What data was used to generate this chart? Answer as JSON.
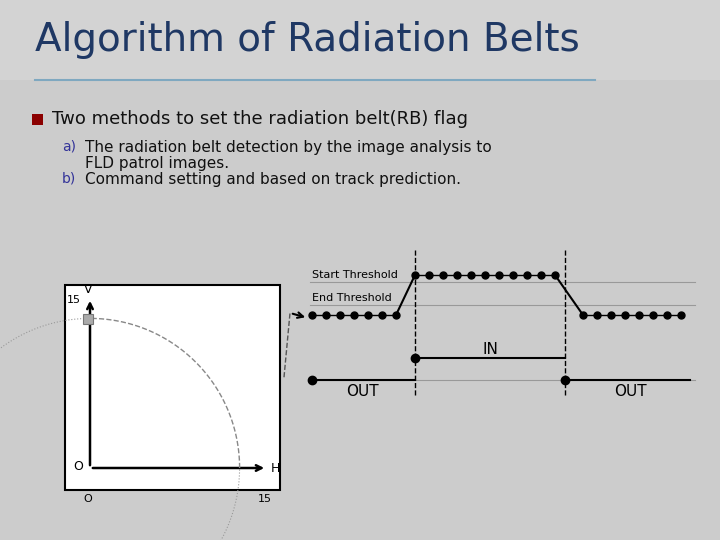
{
  "title": "Algorithm of Radiation Belts",
  "title_color": "#1F3864",
  "bg_color": "#CDCDCD",
  "bullet_text": "Two methods to set the radiation belt(RB) flag",
  "bullet_color": "#8B0000",
  "item_a_label": "a)",
  "item_a_line1": "The radiation belt detection by the image analysis to",
  "item_a_line2": "FLD patrol images.",
  "item_b_label": "b)",
  "item_b_text": "Command setting and based on track prediction.",
  "start_threshold_label": "Start Threshold",
  "end_threshold_label": "End Threshold",
  "out_label": "OUT",
  "in_label": "IN",
  "v_label": "V",
  "h_label": "H",
  "o_axis": "O",
  "num_15": "15",
  "num_0": "O",
  "title_fontsize": 28,
  "bullet_fontsize": 13,
  "item_fontsize": 11,
  "sub_label_fontsize": 10,
  "diagram_fontsize": 8
}
